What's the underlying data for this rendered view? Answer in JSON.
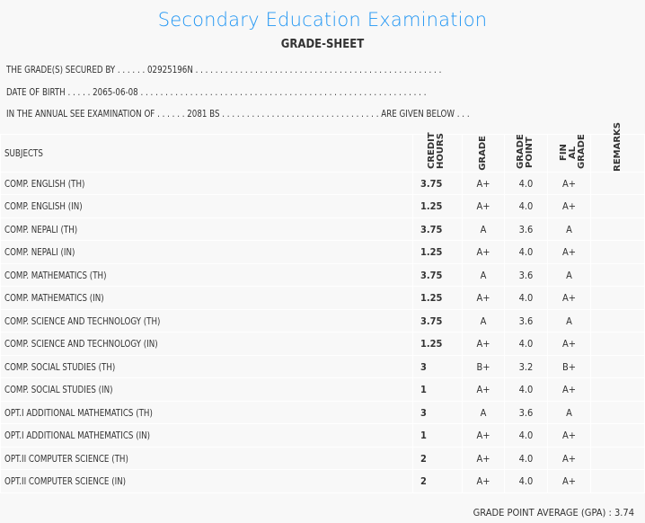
{
  "header": {
    "title": "Secondary Education Examination",
    "subtitle": "GRADE-SHEET"
  },
  "info": {
    "secured_by": "THE GRADE(S) SECURED BY . . . . . . 02925196N . . . . . . . . . . . . . . . . . . . . . . . . . . . . . . . . . . . . . . . . . . . . . . . . . .",
    "dob": "DATE OF BIRTH . . . . . 2065-06-08 . . . . . . . . . . . . . . . . . . . . . . . . . . . . . . . . . . . . . . . . . . . . . . . . . . . . . . . . . .",
    "exam": "IN THE ANNUAL SEE EXAMINATION OF . . . . . . 2081 BS . . . . . . . . . . . . . . . . . . . . . . . . . . . . . . . . ARE GIVEN BELOW . . ."
  },
  "columns": {
    "subjects": "SUBJECTS",
    "credit": "CREDIT HOURS",
    "grade": "GRADE",
    "point": "GRADE POINT",
    "final": "FIN AL GRADE",
    "remarks": "REMARKS"
  },
  "rows": [
    {
      "subject": "COMP. ENGLISH (TH)",
      "credit": "3.75",
      "grade": "A+",
      "point": "4.0",
      "final": "A+"
    },
    {
      "subject": "COMP. ENGLISH (IN)",
      "credit": "1.25",
      "grade": "A+",
      "point": "4.0",
      "final": "A+"
    },
    {
      "subject": "COMP. NEPALI (TH)",
      "credit": "3.75",
      "grade": "A",
      "point": "3.6",
      "final": "A"
    },
    {
      "subject": "COMP. NEPALI (IN)",
      "credit": "1.25",
      "grade": "A+",
      "point": "4.0",
      "final": "A+"
    },
    {
      "subject": "COMP. MATHEMATICS (TH)",
      "credit": "3.75",
      "grade": "A",
      "point": "3.6",
      "final": "A"
    },
    {
      "subject": "COMP. MATHEMATICS (IN)",
      "credit": "1.25",
      "grade": "A+",
      "point": "4.0",
      "final": "A+"
    },
    {
      "subject": "COMP. SCIENCE AND TECHNOLOGY (TH)",
      "credit": "3.75",
      "grade": "A",
      "point": "3.6",
      "final": "A"
    },
    {
      "subject": "COMP. SCIENCE AND TECHNOLOGY (IN)",
      "credit": "1.25",
      "grade": "A+",
      "point": "4.0",
      "final": "A+"
    },
    {
      "subject": "COMP. SOCIAL STUDIES (TH)",
      "credit": "3",
      "grade": "B+",
      "point": "3.2",
      "final": "B+"
    },
    {
      "subject": "COMP. SOCIAL STUDIES (IN)",
      "credit": "1",
      "grade": "A+",
      "point": "4.0",
      "final": "A+"
    },
    {
      "subject": "OPT.I ADDITIONAL MATHEMATICS (TH)",
      "credit": "3",
      "grade": "A",
      "point": "3.6",
      "final": "A"
    },
    {
      "subject": "OPT.I ADDITIONAL MATHEMATICS (IN)",
      "credit": "1",
      "grade": "A+",
      "point": "4.0",
      "final": "A+"
    },
    {
      "subject": "OPT.II COMPUTER SCIENCE (TH)",
      "credit": "2",
      "grade": "A+",
      "point": "4.0",
      "final": "A+"
    },
    {
      "subject": "OPT.II COMPUTER SCIENCE (IN)",
      "credit": "2",
      "grade": "A+",
      "point": "4.0",
      "final": "A+"
    }
  ],
  "gpa": "GRADE POINT AVERAGE (GPA) : 3.74"
}
